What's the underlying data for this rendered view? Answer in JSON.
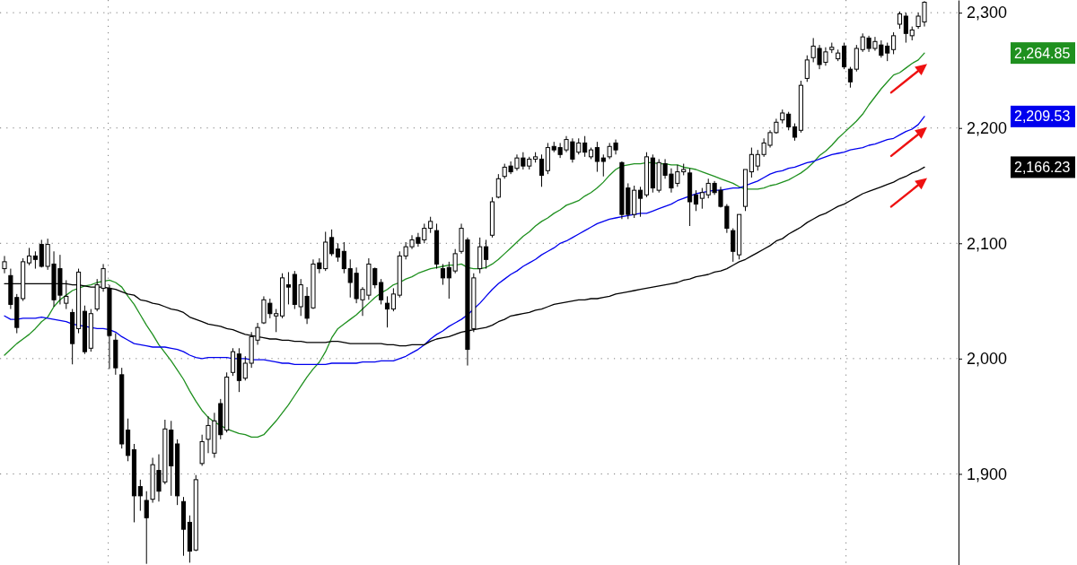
{
  "chart_data": {
    "type": "candlestick",
    "categories": [
      null,
      null,
      null,
      null,
      null,
      null,
      null,
      null,
      null,
      null,
      null,
      null,
      null,
      null,
      null,
      null,
      null,
      null,
      null,
      null,
      null,
      null,
      null,
      null,
      null,
      null,
      null,
      null,
      null,
      null,
      null,
      null,
      null,
      null,
      null,
      null,
      null,
      null,
      null,
      null,
      null,
      null,
      null,
      null,
      null,
      null,
      null,
      null,
      null,
      null,
      null,
      null,
      null,
      null,
      null,
      null,
      null,
      null,
      null,
      null,
      null,
      null,
      null,
      null,
      null,
      null,
      null,
      null,
      null,
      null,
      null,
      null,
      null,
      null,
      null,
      null,
      null,
      null,
      null,
      null,
      null,
      null,
      null,
      null,
      null,
      null,
      null,
      null,
      null,
      null,
      null,
      null,
      null,
      null,
      null,
      null,
      null,
      null,
      null,
      null,
      null,
      null,
      null,
      null,
      null,
      null,
      null,
      null,
      null,
      null,
      null,
      null,
      null,
      null,
      null,
      null,
      null,
      null,
      null,
      null,
      null,
      null,
      null,
      null,
      null,
      null,
      null,
      null,
      null,
      null,
      null,
      null,
      null,
      null,
      null,
      null,
      null,
      null,
      null,
      null,
      null,
      null,
      null,
      null,
      null,
      null,
      null,
      null,
      null,
      null
    ],
    "ohlc": [
      [
        2078,
        2089,
        2074,
        2084
      ],
      [
        2072,
        2078,
        2043,
        2047
      ],
      [
        2053,
        2056,
        2022,
        2027
      ],
      [
        2052,
        2087,
        2050,
        2084
      ],
      [
        2083,
        2096,
        2081,
        2089
      ],
      [
        2089,
        2093,
        2078,
        2086
      ],
      [
        2099,
        2103,
        2079,
        2080
      ],
      [
        2080,
        2104,
        2077,
        2099
      ],
      [
        2082,
        2093,
        2045,
        2051
      ],
      [
        2078,
        2090,
        2047,
        2055
      ],
      [
        2048,
        2068,
        2043,
        2054
      ],
      [
        2040,
        2043,
        1995,
        2013
      ],
      [
        2026,
        2078,
        2022,
        2075
      ],
      [
        2041,
        2046,
        2004,
        2006
      ],
      [
        2009,
        2043,
        2006,
        2039
      ],
      [
        2043,
        2069,
        2041,
        2064
      ],
      [
        2061,
        2082,
        2058,
        2078
      ],
      [
        2061,
        2064,
        1991,
        2020
      ],
      [
        2016,
        2022,
        1986,
        1992
      ],
      [
        1986,
        1992,
        1922,
        1926
      ],
      [
        1938,
        1948,
        1911,
        1916
      ],
      [
        1921,
        1926,
        1858,
        1881
      ],
      [
        1889,
        1895,
        1868,
        1881
      ],
      [
        1877,
        1885,
        1822,
        1862
      ],
      [
        1878,
        1914,
        1875,
        1908
      ],
      [
        1903,
        1917,
        1876,
        1885
      ],
      [
        1893,
        1947,
        1891,
        1939
      ],
      [
        1938,
        1946,
        1881,
        1907
      ],
      [
        1926,
        1930,
        1873,
        1881
      ],
      [
        1876,
        1880,
        1829,
        1852
      ],
      [
        1858,
        1864,
        1823,
        1833
      ],
      [
        1834,
        1899,
        1833,
        1895
      ],
      [
        1909,
        1934,
        1907,
        1928
      ],
      [
        1930,
        1950,
        1918,
        1942
      ],
      [
        1918,
        1953,
        1914,
        1946
      ],
      [
        1961,
        1965,
        1930,
        1934
      ],
      [
        1938,
        1988,
        1936,
        1984
      ],
      [
        1988,
        2009,
        1985,
        2006
      ],
      [
        2004,
        2009,
        1971,
        1981
      ],
      [
        1983,
        2002,
        1981,
        1996
      ],
      [
        1996,
        2023,
        1992,
        2019
      ],
      [
        2016,
        2031,
        2012,
        2027
      ],
      [
        2031,
        2054,
        2030,
        2051
      ],
      [
        2048,
        2052,
        2035,
        2039
      ],
      [
        2037,
        2043,
        2023,
        2039
      ],
      [
        2037,
        2074,
        2035,
        2070
      ],
      [
        2064,
        2075,
        2047,
        2062
      ],
      [
        2073,
        2076,
        2043,
        2047
      ],
      [
        2045,
        2069,
        2037,
        2064
      ],
      [
        2054,
        2062,
        2030,
        2035
      ],
      [
        2044,
        2086,
        2043,
        2082
      ],
      [
        2083,
        2087,
        2074,
        2078
      ],
      [
        2078,
        2110,
        2076,
        2101
      ],
      [
        2105,
        2112,
        2089,
        2091
      ],
      [
        2095,
        2100,
        2084,
        2088
      ],
      [
        2093,
        2101,
        2074,
        2078
      ],
      [
        2078,
        2086,
        2053,
        2066
      ],
      [
        2074,
        2079,
        2048,
        2052
      ],
      [
        2051,
        2062,
        2037,
        2060
      ],
      [
        2055,
        2087,
        2051,
        2082
      ],
      [
        2078,
        2079,
        2061,
        2064
      ],
      [
        2066,
        2069,
        2047,
        2051
      ],
      [
        2048,
        2054,
        2027,
        2043
      ],
      [
        2043,
        2061,
        2041,
        2056
      ],
      [
        2055,
        2093,
        2053,
        2089
      ],
      [
        2089,
        2101,
        2086,
        2097
      ],
      [
        2097,
        2107,
        2095,
        2103
      ],
      [
        2105,
        2109,
        2097,
        2100
      ],
      [
        2103,
        2117,
        2100,
        2113
      ],
      [
        2113,
        2123,
        2109,
        2119
      ],
      [
        2111,
        2117,
        2078,
        2082
      ],
      [
        2078,
        2082,
        2064,
        2070
      ],
      [
        2079,
        2084,
        2052,
        2070
      ],
      [
        2076,
        2095,
        2074,
        2091
      ],
      [
        2093,
        2117,
        2091,
        2113
      ],
      [
        2103,
        2105,
        1994,
        2008
      ],
      [
        2026,
        2074,
        2023,
        2070
      ],
      [
        2078,
        2105,
        2074,
        2097
      ],
      [
        2097,
        2103,
        2078,
        2086
      ],
      [
        2107,
        2140,
        2105,
        2136
      ],
      [
        2140,
        2160,
        2139,
        2156
      ],
      [
        2158,
        2169,
        2156,
        2166
      ],
      [
        2167,
        2171,
        2160,
        2162
      ],
      [
        2165,
        2177,
        2163,
        2174
      ],
      [
        2174,
        2179,
        2164,
        2167
      ],
      [
        2167,
        2175,
        2164,
        2173
      ],
      [
        2173,
        2179,
        2170,
        2175
      ],
      [
        2173,
        2177,
        2149,
        2159
      ],
      [
        2163,
        2187,
        2160,
        2183
      ],
      [
        2184,
        2188,
        2179,
        2181
      ],
      [
        2183,
        2187,
        2174,
        2177
      ],
      [
        2181,
        2193,
        2179,
        2190
      ],
      [
        2188,
        2191,
        2170,
        2173
      ],
      [
        2179,
        2191,
        2177,
        2187
      ],
      [
        2187,
        2193,
        2175,
        2179
      ],
      [
        2175,
        2183,
        2173,
        2181
      ],
      [
        2183,
        2188,
        2162,
        2171
      ],
      [
        2174,
        2177,
        2158,
        2171
      ],
      [
        2175,
        2187,
        2173,
        2184
      ],
      [
        2187,
        2190,
        2177,
        2181
      ],
      [
        2170,
        2171,
        2121,
        2125
      ],
      [
        2148,
        2152,
        2121,
        2125
      ],
      [
        2125,
        2150,
        2122,
        2146
      ],
      [
        2146,
        2149,
        2123,
        2139
      ],
      [
        2142,
        2179,
        2140,
        2175
      ],
      [
        2174,
        2177,
        2144,
        2148
      ],
      [
        2146,
        2173,
        2144,
        2170
      ],
      [
        2169,
        2173,
        2156,
        2159
      ],
      [
        2160,
        2165,
        2144,
        2148
      ],
      [
        2152,
        2168,
        2149,
        2162
      ],
      [
        2162,
        2169,
        2159,
        2164
      ],
      [
        2161,
        2165,
        2115,
        2136
      ],
      [
        2142,
        2146,
        2128,
        2134
      ],
      [
        2139,
        2148,
        2130,
        2144
      ],
      [
        2142,
        2156,
        2139,
        2152
      ],
      [
        2152,
        2154,
        2142,
        2144
      ],
      [
        2146,
        2149,
        2131,
        2132
      ],
      [
        2132,
        2134,
        2109,
        2113
      ],
      [
        2111,
        2113,
        2084,
        2093
      ],
      [
        2090,
        2125,
        2086,
        2125
      ],
      [
        2132,
        2164,
        2128,
        2164
      ],
      [
        2162,
        2183,
        2157,
        2177
      ],
      [
        2167,
        2181,
        2163,
        2177
      ],
      [
        2177,
        2191,
        2175,
        2187
      ],
      [
        2185,
        2198,
        2183,
        2196
      ],
      [
        2196,
        2208,
        2195,
        2205
      ],
      [
        2207,
        2216,
        2204,
        2213
      ],
      [
        2212,
        2214,
        2198,
        2201
      ],
      [
        2201,
        2204,
        2189,
        2192
      ],
      [
        2198,
        2241,
        2196,
        2237
      ],
      [
        2243,
        2263,
        2240,
        2259
      ],
      [
        2261,
        2278,
        2257,
        2271
      ],
      [
        2269,
        2272,
        2251,
        2255
      ],
      [
        2257,
        2270,
        2254,
        2266
      ],
      [
        2268,
        2274,
        2265,
        2270
      ],
      [
        2260,
        2268,
        2258,
        2265
      ],
      [
        2271,
        2274,
        2251,
        2253
      ],
      [
        2251,
        2253,
        2235,
        2240
      ],
      [
        2251,
        2272,
        2249,
        2269
      ],
      [
        2268,
        2282,
        2266,
        2279
      ],
      [
        2278,
        2280,
        2266,
        2269
      ],
      [
        2269,
        2279,
        2267,
        2275
      ],
      [
        2272,
        2276,
        2261,
        2263
      ],
      [
        2271,
        2274,
        2258,
        2265
      ],
      [
        2268,
        2283,
        2264,
        2280
      ],
      [
        2290,
        2301,
        2286,
        2299
      ],
      [
        2297,
        2300,
        2274,
        2282
      ],
      [
        2280,
        2288,
        2276,
        2285
      ],
      [
        2288,
        2300,
        2286,
        2297
      ],
      [
        2292,
        2310,
        2288,
        2309
      ]
    ],
    "series": [
      {
        "type": "line",
        "color": "#1f901f",
        "values": [
          2003,
          2008,
          2013,
          2017,
          2021,
          2026,
          2032,
          2036,
          2045,
          2051,
          2055,
          2059,
          2061,
          2063,
          2064,
          2066,
          2067,
          2068,
          2066,
          2062,
          2054,
          2047,
          2038,
          2029,
          2021,
          2012,
          2005,
          1998,
          1990,
          1982,
          1972,
          1963,
          1955,
          1949,
          1945,
          1942,
          1939,
          1937,
          1935,
          1934,
          1932,
          1932,
          1934,
          1940,
          1946,
          1953,
          1960,
          1968,
          1976,
          1984,
          1991,
          1997,
          2006,
          2018,
          2026,
          2030,
          2034,
          2038,
          2043,
          2048,
          2053,
          2057,
          2060,
          2064,
          2066,
          2069,
          2071,
          2074,
          2076,
          2078,
          2079,
          2080,
          2081,
          2081,
          2082,
          2079,
          2078,
          2078,
          2079,
          2082,
          2086,
          2091,
          2096,
          2101,
          2106,
          2110,
          2115,
          2119,
          2122,
          2126,
          2129,
          2133,
          2135,
          2137,
          2141,
          2144,
          2148,
          2153,
          2159,
          2164,
          2167,
          2168,
          2169,
          2169,
          2170,
          2170,
          2169,
          2169,
          2168,
          2168,
          2166,
          2165,
          2164,
          2162,
          2160,
          2158,
          2156,
          2154,
          2152,
          2149,
          2147,
          2147,
          2147,
          2148,
          2150,
          2151,
          2153,
          2155,
          2158,
          2161,
          2165,
          2170,
          2176,
          2180,
          2185,
          2191,
          2196,
          2201,
          2206,
          2212,
          2220,
          2227,
          2234,
          2240,
          2246,
          2248,
          2252,
          2256,
          2259,
          2265
        ]
      },
      {
        "type": "line",
        "color": "#0000ee",
        "values": [
          2037,
          2034,
          2034,
          2035,
          2035,
          2035,
          2036,
          2035,
          2034,
          2033,
          2032,
          2030,
          2029,
          2028,
          2027,
          2026,
          2026,
          2025,
          2023,
          2019,
          2016,
          2013,
          2012,
          2011,
          2010,
          2010,
          2010,
          2009,
          2008,
          2006,
          2003,
          2001,
          2000,
          2001,
          2001,
          2001,
          2001,
          2000,
          2000,
          2000,
          1999,
          1999,
          1999,
          1998,
          1997,
          1996,
          1996,
          1995,
          1995,
          1995,
          1995,
          1995,
          1995,
          1996,
          1996,
          1996,
          1996,
          1996,
          1997,
          1997,
          1997,
          1998,
          1998,
          1998,
          2000,
          2002,
          2005,
          2008,
          2012,
          2017,
          2021,
          2024,
          2028,
          2031,
          2034,
          2038,
          2043,
          2048,
          2054,
          2060,
          2065,
          2069,
          2073,
          2076,
          2080,
          2083,
          2086,
          2090,
          2093,
          2096,
          2100,
          2102,
          2105,
          2108,
          2111,
          2114,
          2117,
          2119,
          2121,
          2122,
          2123,
          2124,
          2125,
          2126,
          2126,
          2128,
          2130,
          2132,
          2134,
          2137,
          2139,
          2141,
          2143,
          2144,
          2145,
          2146,
          2146,
          2147,
          2148,
          2148,
          2150,
          2152,
          2154,
          2157,
          2160,
          2162,
          2163,
          2165,
          2166,
          2168,
          2170,
          2171,
          2173,
          2175,
          2177,
          2178,
          2179,
          2181,
          2182,
          2183,
          2185,
          2186,
          2188,
          2190,
          2191,
          2194,
          2197,
          2199,
          2203,
          2210
        ]
      },
      {
        "type": "line",
        "color": "#000000",
        "values": [
          2065,
          2065,
          2065,
          2065,
          2065,
          2065,
          2065,
          2065,
          2065,
          2065,
          2065,
          2064,
          2064,
          2063,
          2062,
          2062,
          2062,
          2061,
          2060,
          2058,
          2056,
          2055,
          2051,
          2050,
          2048,
          2047,
          2045,
          2043,
          2042,
          2040,
          2036,
          2034,
          2032,
          2030,
          2029,
          2028,
          2026,
          2025,
          2023,
          2021,
          2020,
          2019,
          2018,
          2017,
          2017,
          2016,
          2016,
          2015,
          2015,
          2014,
          2014,
          2014,
          2014,
          2015,
          2015,
          2014,
          2013,
          2013,
          2013,
          2013,
          2013,
          2013,
          2012,
          2012,
          2011,
          2011,
          2012,
          2012,
          2012,
          2015,
          2017,
          2018,
          2019,
          2021,
          2023,
          2024,
          2025,
          2026,
          2027,
          2029,
          2032,
          2034,
          2037,
          2038,
          2039,
          2040,
          2042,
          2043,
          2045,
          2047,
          2048,
          2049,
          2050,
          2051,
          2051,
          2052,
          2052,
          2053,
          2054,
          2056,
          2057,
          2058,
          2059,
          2060,
          2061,
          2062,
          2063,
          2064,
          2065,
          2066,
          2068,
          2069,
          2071,
          2072,
          2073,
          2075,
          2076,
          2078,
          2081,
          2084,
          2086,
          2089,
          2092,
          2095,
          2098,
          2102,
          2104,
          2108,
          2111,
          2114,
          2118,
          2121,
          2124,
          2126,
          2129,
          2132,
          2134,
          2137,
          2140,
          2143,
          2145,
          2147,
          2149,
          2151,
          2153,
          2156,
          2158,
          2161,
          2163,
          2166
        ]
      }
    ],
    "ylim": [
      1821,
      2311
    ],
    "yticks": [
      {
        "value": 1900,
        "label": "1,900"
      },
      {
        "value": 2000,
        "label": "2,000"
      },
      {
        "value": 2100,
        "label": "2,100"
      },
      {
        "value": 2200,
        "label": "2,200"
      },
      {
        "value": 2300,
        "label": "2,300"
      }
    ],
    "grid": true,
    "tick_labels": "y",
    "annotations": [
      "2,264.85",
      "2,209.53",
      "2,166.23"
    ]
  }
}
